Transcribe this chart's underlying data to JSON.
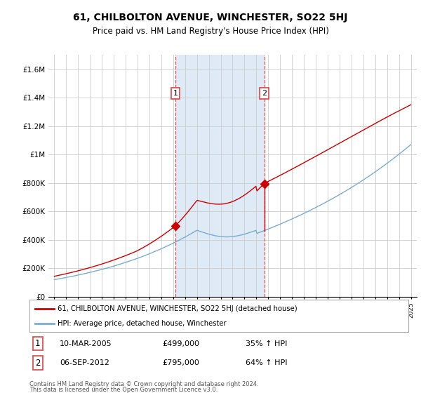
{
  "title": "61, CHILBOLTON AVENUE, WINCHESTER, SO22 5HJ",
  "subtitle": "Price paid vs. HM Land Registry's House Price Index (HPI)",
  "legend_line1": "61, CHILBOLTON AVENUE, WINCHESTER, SO22 5HJ (detached house)",
  "legend_line2": "HPI: Average price, detached house, Winchester",
  "sale1_date": "10-MAR-2005",
  "sale1_price": "£499,000",
  "sale1_hpi": "35% ↑ HPI",
  "sale1_year": 2005.19,
  "sale1_value": 499000,
  "sale2_date": "06-SEP-2012",
  "sale2_price": "£795,000",
  "sale2_hpi": "64% ↑ HPI",
  "sale2_year": 2012.67,
  "sale2_value": 795000,
  "footnote1": "Contains HM Land Registry data © Crown copyright and database right 2024.",
  "footnote2": "This data is licensed under the Open Government Licence v3.0.",
  "red_color": "#cc0000",
  "blue_color": "#7aadcc",
  "shade_color": "#deeaf5",
  "dashed_color": "#dd4444",
  "grid_color": "#cccccc",
  "bg_color": "#ffffff",
  "ylim_max": 1700000,
  "xlim_start": 1994.5,
  "xlim_end": 2025.5,
  "n_points": 360
}
